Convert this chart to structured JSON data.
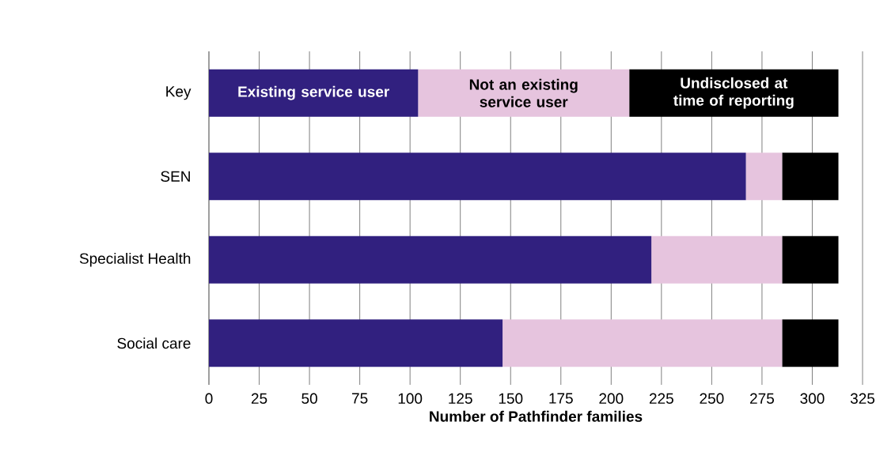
{
  "chart_data": {
    "type": "bar",
    "orientation": "horizontal",
    "stacked": true,
    "categories": [
      "Key",
      "SEN",
      "Specialist Health",
      "Social care"
    ],
    "series": [
      {
        "name": "Existing service user",
        "color": "#31207f",
        "values": [
          104,
          267,
          220,
          146
        ]
      },
      {
        "name": "Not an existing service user",
        "color": "#e6c4de",
        "values": [
          105,
          18,
          65,
          139
        ]
      },
      {
        "name": "Undisclosed at time of reporting",
        "color": "#000000",
        "values": [
          104,
          28,
          28,
          28
        ]
      }
    ],
    "xlabel": "Number of Pathfinder families",
    "xlim": [
      0,
      325
    ],
    "xticks": [
      0,
      25,
      50,
      75,
      100,
      125,
      150,
      175,
      200,
      225,
      250,
      275,
      300,
      325
    ],
    "grid": "x",
    "legend": false
  }
}
